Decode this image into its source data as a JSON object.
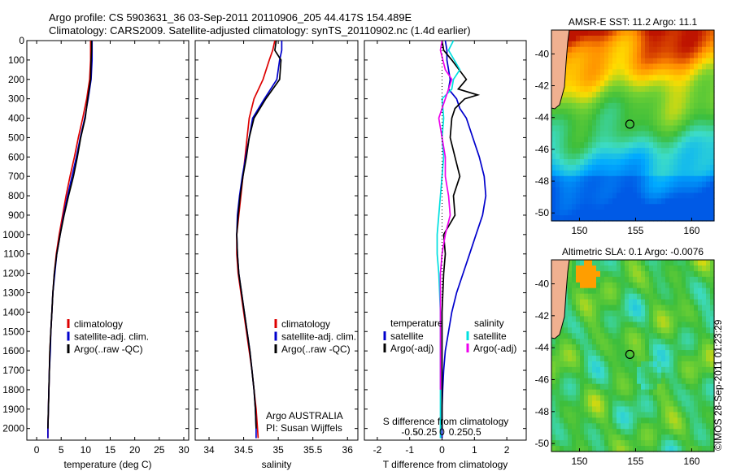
{
  "header": {
    "line1": "Argo profile: CS 5903631_36 03-Sep-2011 20110906_205 44.417S 154.489E",
    "line2": "Climatology: CARS2009. Satellite-adjusted climatology: synTS_20110902.nc (1.4d earlier)"
  },
  "stamp": "©IMOS 28-Sep-2011 01:23:29",
  "colors": {
    "climatology": "#dd0000",
    "satellite": "#0000cc",
    "argo": "#000000",
    "sat_sal": "#00e0e0",
    "argo_sal": "#ee00ee"
  },
  "depth_axis": {
    "ticks": [
      0,
      100,
      200,
      300,
      400,
      500,
      600,
      700,
      800,
      900,
      1000,
      1100,
      1200,
      1300,
      1400,
      1500,
      1600,
      1700,
      1800,
      1900,
      2000
    ],
    "range": [
      0,
      2060
    ],
    "inverted": true
  },
  "chart_data": [
    {
      "id": "temp",
      "type": "line",
      "xlabel": "temperature (deg C)",
      "xlim": [
        -2,
        31
      ],
      "xticks": [
        0,
        5,
        10,
        15,
        20,
        25,
        30
      ],
      "legend": [
        "climatology",
        "satellite-adj. clim.",
        "Argo(..raw -QC)"
      ],
      "series": [
        {
          "name": "climatology",
          "key": "climatology",
          "x": [
            11.0,
            11.0,
            11.0,
            10.8,
            10.2,
            9.4,
            8.5,
            7.7,
            6.8,
            6.0,
            5.3,
            4.6,
            4.0,
            3.6,
            3.3,
            3.1,
            2.9,
            2.7,
            2.6,
            2.5,
            2.4,
            2.3,
            2.3
          ],
          "depth": [
            0,
            50,
            100,
            200,
            300,
            400,
            500,
            600,
            700,
            800,
            900,
            1000,
            1100,
            1200,
            1300,
            1400,
            1500,
            1600,
            1700,
            1800,
            1900,
            2000,
            2050
          ]
        },
        {
          "name": "satellite-adj. clim.",
          "key": "satellite",
          "x": [
            11.3,
            11.3,
            11.3,
            11.1,
            10.5,
            9.8,
            8.9,
            8.1,
            7.2,
            6.3,
            5.5,
            4.8,
            4.1,
            3.7,
            3.3,
            3.1,
            2.9,
            2.8,
            2.6,
            2.5,
            2.4,
            2.3,
            2.3
          ],
          "depth": [
            0,
            50,
            100,
            200,
            300,
            400,
            500,
            600,
            700,
            800,
            900,
            1000,
            1100,
            1200,
            1300,
            1400,
            1500,
            1600,
            1700,
            1800,
            1900,
            2000,
            2050
          ]
        },
        {
          "name": "Argo(..raw -QC)",
          "key": "argo",
          "x": [
            11.2,
            11.2,
            11.1,
            11.0,
            10.4,
            9.9,
            9.0,
            8.3,
            7.5,
            6.5,
            5.6,
            4.8,
            4.1,
            3.6,
            3.3,
            3.1,
            2.9,
            2.7,
            2.6,
            2.5,
            2.4,
            2.3
          ],
          "depth": [
            0,
            50,
            100,
            200,
            300,
            400,
            500,
            600,
            700,
            800,
            900,
            1000,
            1100,
            1200,
            1300,
            1400,
            1500,
            1600,
            1700,
            1800,
            1900,
            2000
          ]
        }
      ]
    },
    {
      "id": "sal",
      "type": "line",
      "xlabel": "salinity",
      "xlim": [
        33.8,
        36.15
      ],
      "xticks": [
        34,
        34.5,
        35,
        35.5,
        36
      ],
      "legend": [
        "climatology",
        "satellite-adj. clim.",
        "Argo(..raw -QC)"
      ],
      "annotation": [
        "Argo AUSTRALIA",
        "PI: Susan Wijffels"
      ],
      "series": [
        {
          "name": "climatology",
          "key": "climatology",
          "x": [
            34.95,
            34.92,
            34.87,
            34.78,
            34.65,
            34.58,
            34.55,
            34.52,
            34.49,
            34.46,
            34.43,
            34.4,
            34.4,
            34.42,
            34.46,
            34.5,
            34.54,
            34.58,
            34.62,
            34.65,
            34.68,
            34.7,
            34.71
          ],
          "depth": [
            0,
            50,
            100,
            200,
            300,
            400,
            500,
            600,
            700,
            800,
            900,
            1000,
            1100,
            1200,
            1300,
            1400,
            1500,
            1600,
            1700,
            1800,
            1900,
            2000,
            2050
          ]
        },
        {
          "name": "satellite-adj. clim.",
          "key": "satellite",
          "x": [
            35.05,
            35.05,
            35.02,
            34.98,
            34.8,
            34.63,
            34.58,
            34.53,
            34.48,
            34.44,
            34.41,
            34.4,
            34.41,
            34.43,
            34.47,
            34.51,
            34.55,
            34.59,
            34.62,
            34.65,
            34.67,
            34.68,
            34.68
          ],
          "depth": [
            0,
            50,
            100,
            200,
            300,
            400,
            500,
            600,
            700,
            800,
            900,
            1000,
            1100,
            1200,
            1300,
            1400,
            1500,
            1600,
            1700,
            1800,
            1900,
            2000,
            2050
          ]
        },
        {
          "name": "Argo(..raw -QC)",
          "key": "argo",
          "x": [
            34.97,
            34.95,
            35.04,
            35.02,
            34.82,
            34.65,
            34.58,
            34.54,
            34.49,
            34.45,
            34.42,
            34.4,
            34.41,
            34.43,
            34.47,
            34.51,
            34.55,
            34.59,
            34.62,
            34.65,
            34.67,
            34.68
          ],
          "depth": [
            0,
            50,
            100,
            200,
            300,
            400,
            500,
            600,
            700,
            800,
            900,
            1000,
            1100,
            1200,
            1300,
            1400,
            1500,
            1600,
            1700,
            1800,
            1900,
            2000
          ]
        }
      ]
    },
    {
      "id": "diff",
      "type": "line",
      "xlabel": "T difference from climatology",
      "xlabel_top": "S difference from climatology",
      "xlim": [
        -2.4,
        2.6
      ],
      "xticks": [
        -2,
        -1,
        0,
        1,
        2
      ],
      "xticks_top": [
        -0.5,
        -0.25,
        0,
        0.25,
        0.5
      ],
      "xticks_top_labels": [
        "-0.5",
        "-0.25",
        "0",
        "0.25",
        "0.5"
      ],
      "legend_left_title": "temperature",
      "legend_left": [
        "satellite",
        "Argo(-adj)"
      ],
      "legend_right_title": "salinity",
      "legend_right": [
        "satellite",
        "Argo(-adj)"
      ],
      "series": [
        {
          "name": "satellite",
          "group": "temperature",
          "key": "satellite",
          "x": [
            0.1,
            0.15,
            0.15,
            0.25,
            0.2,
            0.45,
            0.55,
            0.75,
            0.95,
            1.15,
            1.3,
            1.35,
            1.25,
            1.05,
            0.85,
            0.65,
            0.45,
            0.3,
            0.2,
            0.1,
            0.05,
            0.02,
            0.0,
            0.0
          ],
          "depth": [
            0,
            50,
            100,
            200,
            250,
            300,
            350,
            400,
            500,
            600,
            700,
            800,
            900,
            1000,
            1100,
            1200,
            1300,
            1400,
            1500,
            1600,
            1700,
            1800,
            1900,
            2050
          ]
        },
        {
          "name": "Argo(-adj)",
          "group": "temperature",
          "key": "argo",
          "x": [
            0.0,
            0.05,
            0.3,
            0.75,
            0.5,
            1.1,
            0.7,
            0.4,
            0.3,
            0.25,
            0.4,
            0.55,
            0.35,
            0.4,
            0.05,
            0.1,
            0.05,
            0.0,
            0.0,
            0.0,
            0.0
          ],
          "depth": [
            0,
            50,
            100,
            200,
            250,
            280,
            300,
            350,
            400,
            500,
            600,
            700,
            800,
            900,
            1000,
            1100,
            1200,
            1400,
            1600,
            1800,
            2000
          ]
        },
        {
          "name": "satellite",
          "group": "salinity",
          "key": "sat_sal",
          "x": [
            0.35,
            0.2,
            0.55,
            0.35,
            0.3,
            0.0,
            0.05,
            0.0,
            0.05,
            0.0,
            -0.05,
            -0.1,
            -0.15,
            -0.15,
            -0.1,
            -0.05,
            -0.05,
            -0.05,
            -0.05,
            -0.05
          ],
          "depth": [
            0,
            50,
            150,
            200,
            250,
            300,
            400,
            500,
            600,
            700,
            800,
            900,
            1000,
            1100,
            1200,
            1400,
            1600,
            1800,
            1900,
            2050
          ]
        },
        {
          "name": "Argo(-adj)",
          "group": "salinity",
          "key": "argo_sal",
          "x": [
            0.0,
            -0.05,
            0.1,
            0.3,
            0.1,
            -0.1,
            0.0,
            0.1,
            0.1,
            0.2,
            0.25,
            0.1,
            0.0,
            -0.05,
            -0.05,
            -0.05,
            -0.05
          ],
          "depth": [
            0,
            50,
            150,
            200,
            300,
            400,
            500,
            600,
            700,
            800,
            900,
            1000,
            1100,
            1200,
            1400,
            1600,
            1800
          ]
        }
      ]
    },
    {
      "id": "sst",
      "type": "heatmap",
      "title": "AMSR-E SST: 11.2 Argo: 11.1",
      "xlim": [
        147.5,
        162.0
      ],
      "ylim": [
        -50.5,
        -38.5
      ],
      "xticks": [
        150,
        155,
        160
      ],
      "yticks": [
        -40,
        -42,
        -44,
        -46,
        -48,
        -50
      ],
      "marker": {
        "lon": 154.489,
        "lat": -44.417
      }
    },
    {
      "id": "sla",
      "type": "heatmap",
      "title": "Altimetric SLA: 0.1 Argo: -0.0076",
      "xlim": [
        147.5,
        162.0
      ],
      "ylim": [
        -50.5,
        -38.5
      ],
      "xticks": [
        150,
        155,
        160
      ],
      "yticks": [
        -40,
        -42,
        -44,
        -46,
        -48,
        -50
      ],
      "marker": {
        "lon": 154.489,
        "lat": -44.417
      }
    }
  ]
}
